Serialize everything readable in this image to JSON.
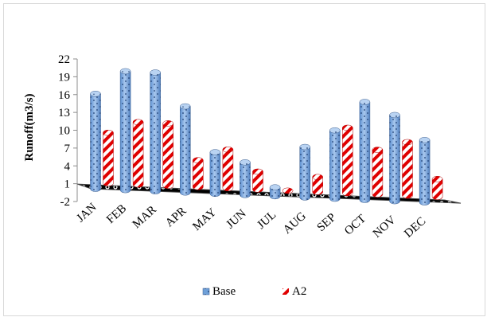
{
  "chart_data": {
    "type": "bar",
    "title": "",
    "xlabel": "",
    "ylabel": "Runoff(m3/s)",
    "ylim": [
      -2,
      22
    ],
    "yticks": [
      -2,
      1,
      4,
      7,
      10,
      13,
      16,
      19,
      22
    ],
    "categories": [
      "JAN",
      "FEB",
      "MAR",
      "APR",
      "MAY",
      "JUN",
      "JUL",
      "AUG",
      "SEP",
      "OCT",
      "NOV",
      "DEC"
    ],
    "series": [
      {
        "name": "Base",
        "color": "#6fa0d8",
        "pattern": "dotted",
        "values": [
          16,
          20,
          20,
          14.5,
          7,
          5.5,
          1.5,
          8.5,
          11.5,
          16.5,
          14.5,
          10.5
        ]
      },
      {
        "name": "A2",
        "color": "#e00000",
        "pattern": "diagonal-stripes",
        "values": [
          8.5,
          10.5,
          10.5,
          4.5,
          6.5,
          3,
          0,
          2.5,
          11,
          7.5,
          9,
          3
        ]
      }
    ],
    "grid": false,
    "legend_position": "bottom",
    "style": "3d-clustered-column"
  }
}
